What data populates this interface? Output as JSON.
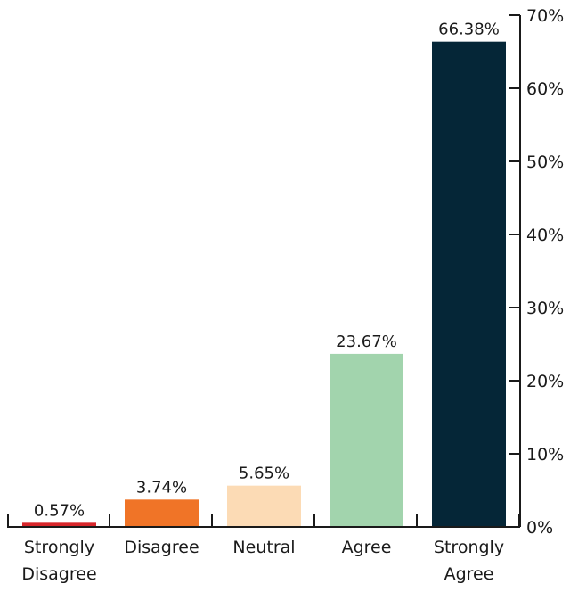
{
  "chart_data": {
    "type": "bar",
    "categories": [
      [
        "Strongly",
        "Disagree"
      ],
      [
        "Disagree"
      ],
      [
        "Neutral"
      ],
      [
        "Agree"
      ],
      [
        "Strongly",
        "Agree"
      ]
    ],
    "values": [
      0.57,
      3.74,
      5.65,
      23.67,
      66.38
    ],
    "value_labels": [
      "0.57%",
      "3.74%",
      "5.65%",
      "23.67%",
      "66.38%"
    ],
    "colors": [
      "#d7262b",
      "#f07427",
      "#fcdbb5",
      "#a2d4ad",
      "#052637"
    ],
    "ylim": [
      0,
      70
    ],
    "yticks": [
      0,
      10,
      20,
      30,
      40,
      50,
      60,
      70
    ],
    "ytick_labels": [
      "0%",
      "10%",
      "20%",
      "30%",
      "40%",
      "50%",
      "60%",
      "70%"
    ],
    "y_axis_side": "right",
    "grid": false,
    "title": "",
    "xlabel": "",
    "ylabel": ""
  }
}
